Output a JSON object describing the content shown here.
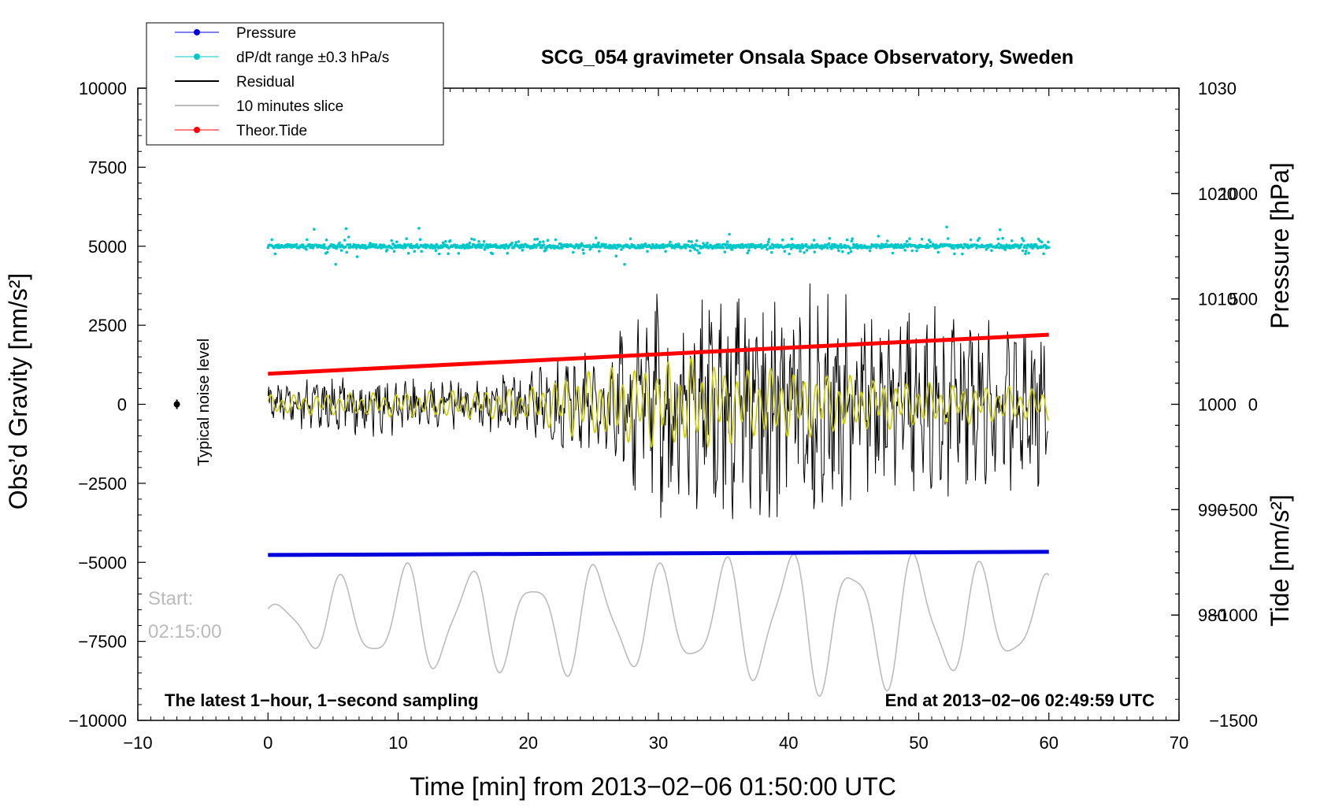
{
  "chart_data": {
    "type": "line",
    "title": "SCG_054 gravimeter Onsala Space Observatory, Sweden",
    "xlabel": "Time [min] from 2013−02−06 01:50:00 UTC",
    "ylabel": "Obs’d Gravity [nm/s²]",
    "y2label": "Pressure [hPa]",
    "y3label": "Tide [nm/s²]",
    "xlim": [
      -10,
      70
    ],
    "ylim": [
      -10000,
      10000
    ],
    "pressure_axis": {
      "range": [
        970,
        1030
      ],
      "ticks": [
        980,
        990,
        1000,
        1010,
        1020,
        1030
      ],
      "tick_labels": [
        "980",
        "990",
        "1000",
        "1010",
        "1020",
        "1030"
      ]
    },
    "tide_axis": {
      "range": [
        -1500,
        1500
      ],
      "ticks": [
        -1500,
        -1000,
        -500,
        0,
        500,
        1000
      ],
      "tick_labels": [
        "−1500",
        "−1000",
        "−500",
        "0",
        "500",
        "1000"
      ]
    },
    "x_ticks": [
      -10,
      0,
      10,
      20,
      30,
      40,
      50,
      60,
      70
    ],
    "x_tick_labels": [
      "−10",
      "0",
      "10",
      "20",
      "30",
      "40",
      "50",
      "60",
      "70"
    ],
    "y_ticks": [
      -10000,
      -7500,
      -5000,
      -2500,
      0,
      2500,
      5000,
      7500,
      10000
    ],
    "y_tick_labels": [
      "−10000",
      "−7500",
      "−5000",
      "−2500",
      "0",
      "2500",
      "5000",
      "7500",
      "10000"
    ],
    "legend": [
      {
        "label": "Pressure",
        "color": "#0000dd",
        "marker": true
      },
      {
        "label": "dP/dt range ±0.3 hPa/s",
        "color": "#00c8c8",
        "marker": true
      },
      {
        "label": "Residual",
        "color": "#000000",
        "marker": false
      },
      {
        "label": "10 minutes slice",
        "color": "#bbbbbb",
        "marker": false
      },
      {
        "label": "Theor.Tide",
        "color": "#ff0000",
        "marker": true
      }
    ],
    "annotations": {
      "left_bottom": "The latest 1−hour, 1−second sampling",
      "right_bottom": "End at 2013−02−06 02:49:59 UTC",
      "start_label": "Start:",
      "start_time": "02:15:00",
      "noise_label": "Typical noise level"
    },
    "series": [
      {
        "name": "Pressure",
        "axis": "pressure",
        "x": [
          0,
          60
        ],
        "y": [
          985.7,
          986.0
        ],
        "color": "#0000dd"
      },
      {
        "name": "Theor.Tide",
        "axis": "tide",
        "x": [
          0,
          60
        ],
        "y": [
          145,
          330
        ],
        "color": "#ff0000"
      },
      {
        "name": "dP/dt range",
        "axis": "gravity",
        "center": 5000,
        "typical_spread": 150,
        "color": "#00c8c8"
      },
      {
        "name": "Residual",
        "axis": "gravity",
        "x": [
          0,
          5,
          10,
          15,
          20,
          23,
          25,
          28,
          30,
          33,
          36,
          40,
          43,
          46,
          50,
          55,
          60
        ],
        "amplitude": [
          600,
          900,
          900,
          700,
          1000,
          1500,
          1500,
          2500,
          3200,
          3000,
          3800,
          3600,
          3600,
          2600,
          2800,
          2600,
          2800
        ],
        "color": "#000000"
      },
      {
        "name": "Smoothed residual",
        "axis": "gravity",
        "x": [
          0,
          10,
          20,
          23,
          25,
          30,
          33,
          36,
          40,
          50,
          60
        ],
        "amplitude": [
          300,
          400,
          500,
          1000,
          1100,
          1400,
          1500,
          1200,
          1100,
          700,
          500
        ],
        "color": "#cccc00"
      },
      {
        "name": "10 minutes slice",
        "axis": "gravity",
        "x": [
          0,
          5,
          10,
          15,
          20,
          25,
          30,
          35,
          40,
          45,
          50,
          55,
          60
        ],
        "y_center": -6800,
        "amplitude": [
          500,
          1400,
          1800,
          2000,
          1500,
          2100,
          1800,
          2000,
          2700,
          2200,
          2500,
          1800,
          1500
        ],
        "color": "#bbbbbb"
      }
    ],
    "noise_marker": {
      "x": -7,
      "y": 0,
      "error": 150
    }
  }
}
